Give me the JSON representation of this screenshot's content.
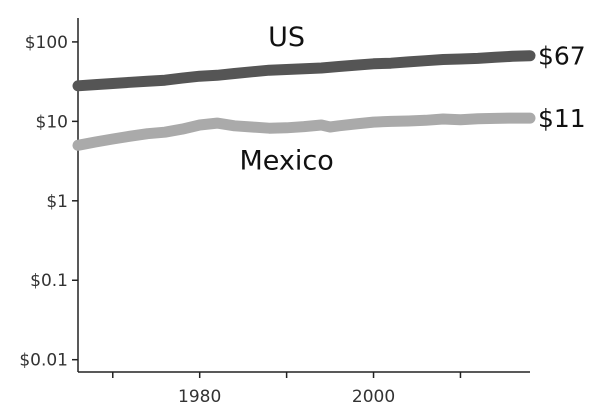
{
  "chart_data": {
    "type": "line",
    "y_scale": "log",
    "ylim": [
      0.007,
      200
    ],
    "xlim": [
      1966,
      2018
    ],
    "y_ticks": [
      {
        "value": 100,
        "label": "$100"
      },
      {
        "value": 10,
        "label": "$10"
      },
      {
        "value": 1,
        "label": "$1"
      },
      {
        "value": 0.1,
        "label": "$0.1"
      },
      {
        "value": 0.01,
        "label": "$0.01"
      }
    ],
    "x_ticks": [
      1970,
      1980,
      1990,
      2000,
      2010
    ],
    "x_tick_labels": [
      {
        "value": 1980,
        "label": "1980"
      },
      {
        "value": 2000,
        "label": "2000"
      }
    ],
    "grid": false,
    "series": [
      {
        "name": "US",
        "color": "#555555",
        "end_label": "$67",
        "points": [
          [
            1966,
            28
          ],
          [
            1968,
            29
          ],
          [
            1970,
            30
          ],
          [
            1972,
            31
          ],
          [
            1974,
            32
          ],
          [
            1976,
            33
          ],
          [
            1978,
            35
          ],
          [
            1980,
            37
          ],
          [
            1982,
            38
          ],
          [
            1984,
            40
          ],
          [
            1986,
            42
          ],
          [
            1988,
            44
          ],
          [
            1990,
            45
          ],
          [
            1992,
            46
          ],
          [
            1994,
            47
          ],
          [
            1996,
            49
          ],
          [
            1998,
            51
          ],
          [
            2000,
            53
          ],
          [
            2002,
            54
          ],
          [
            2004,
            56
          ],
          [
            2006,
            58
          ],
          [
            2008,
            60
          ],
          [
            2010,
            61
          ],
          [
            2012,
            62
          ],
          [
            2014,
            64
          ],
          [
            2016,
            66
          ],
          [
            2018,
            67
          ]
        ]
      },
      {
        "name": "Mexico",
        "color": "#aaaaaa",
        "end_label": "$11",
        "points": [
          [
            1966,
            5
          ],
          [
            1968,
            5.5
          ],
          [
            1970,
            6
          ],
          [
            1972,
            6.5
          ],
          [
            1974,
            7
          ],
          [
            1976,
            7.3
          ],
          [
            1978,
            8
          ],
          [
            1980,
            9
          ],
          [
            1982,
            9.5
          ],
          [
            1984,
            8.8
          ],
          [
            1986,
            8.5
          ],
          [
            1988,
            8.2
          ],
          [
            1990,
            8.3
          ],
          [
            1992,
            8.6
          ],
          [
            1994,
            9
          ],
          [
            1995,
            8.5
          ],
          [
            1996,
            8.8
          ],
          [
            1998,
            9.3
          ],
          [
            2000,
            9.8
          ],
          [
            2002,
            10
          ],
          [
            2004,
            10.1
          ],
          [
            2006,
            10.3
          ],
          [
            2008,
            10.7
          ],
          [
            2010,
            10.5
          ],
          [
            2012,
            10.8
          ],
          [
            2014,
            10.9
          ],
          [
            2016,
            11
          ],
          [
            2018,
            11
          ]
        ]
      }
    ]
  }
}
